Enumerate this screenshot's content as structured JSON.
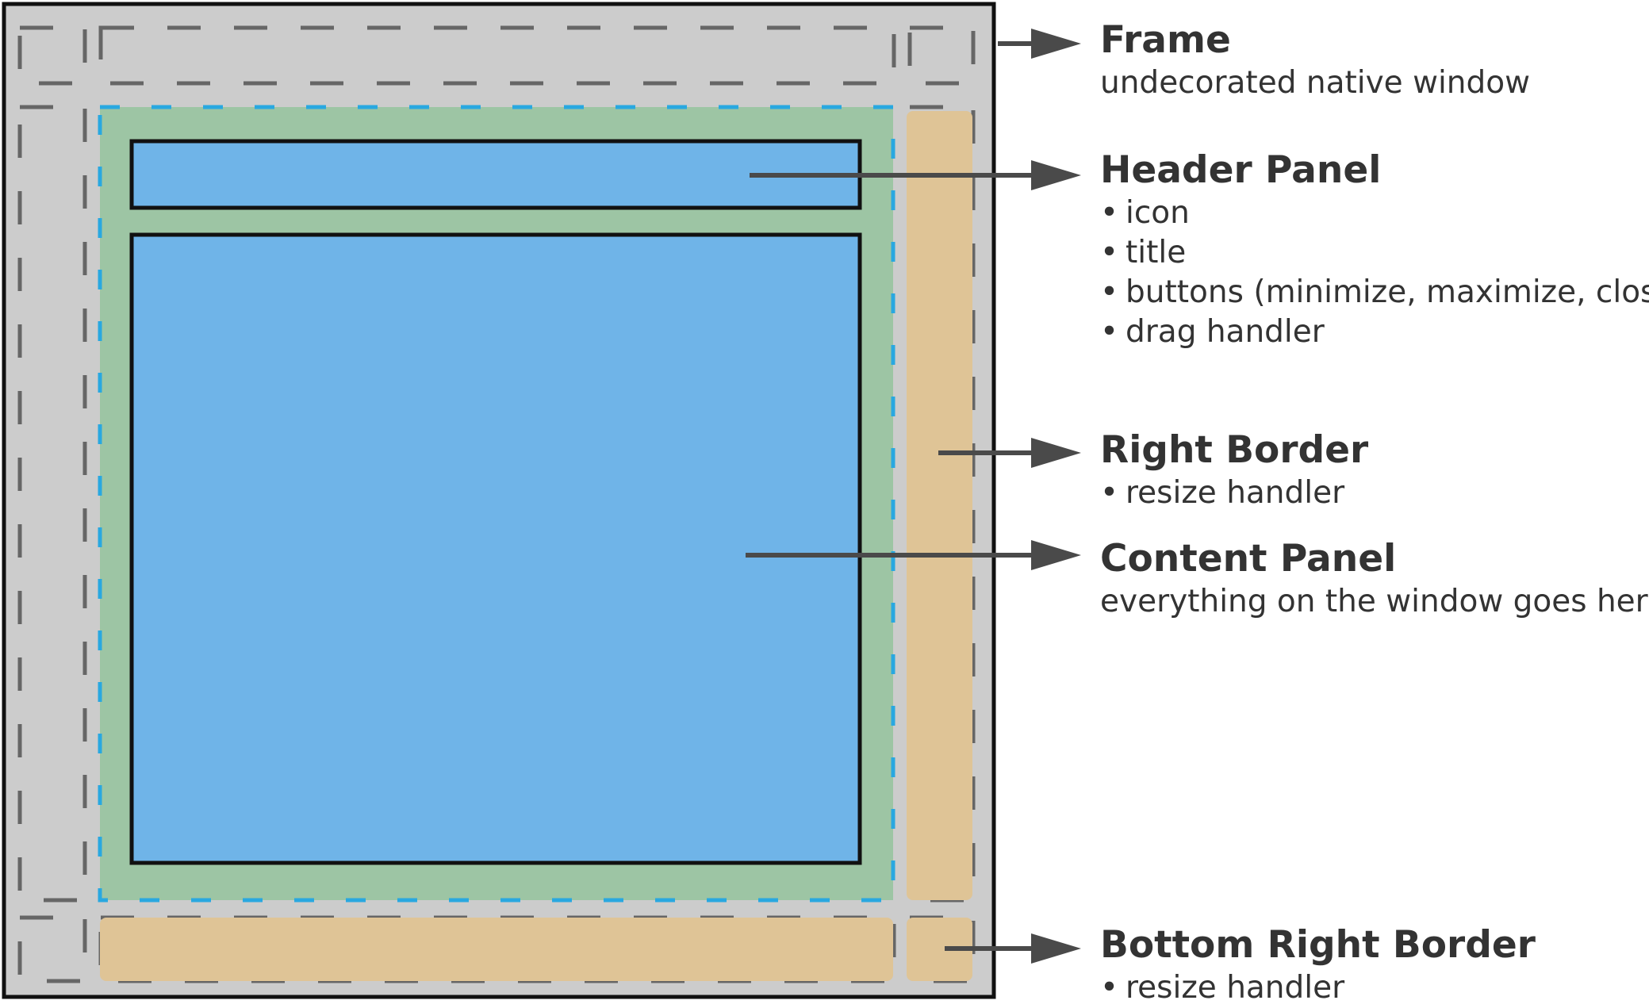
{
  "colors": {
    "frame_fill": "#cccccc",
    "frame_stroke": "#111111",
    "content_green": "#9dc5a4",
    "panel_blue": "#6fb4e8",
    "border_tan": "#dfc496",
    "dash_gray": "#666666",
    "dash_blue": "#29a8e0",
    "arrow": "#4a4a4a",
    "text": "#333333"
  },
  "labels": {
    "frame": {
      "title": "Frame",
      "desc": "undecorated native window"
    },
    "header": {
      "title": "Header Panel",
      "bullets": [
        "icon",
        "title",
        "buttons (minimize, maximize, close)",
        "drag handler"
      ]
    },
    "right_border": {
      "title": "Right Border",
      "bullets": [
        "resize handler"
      ]
    },
    "content": {
      "title": "Content Panel",
      "desc": "everything on the window goes here"
    },
    "bottom_right": {
      "title": "Bottom Right Border",
      "bullets": [
        "resize handler"
      ]
    }
  }
}
